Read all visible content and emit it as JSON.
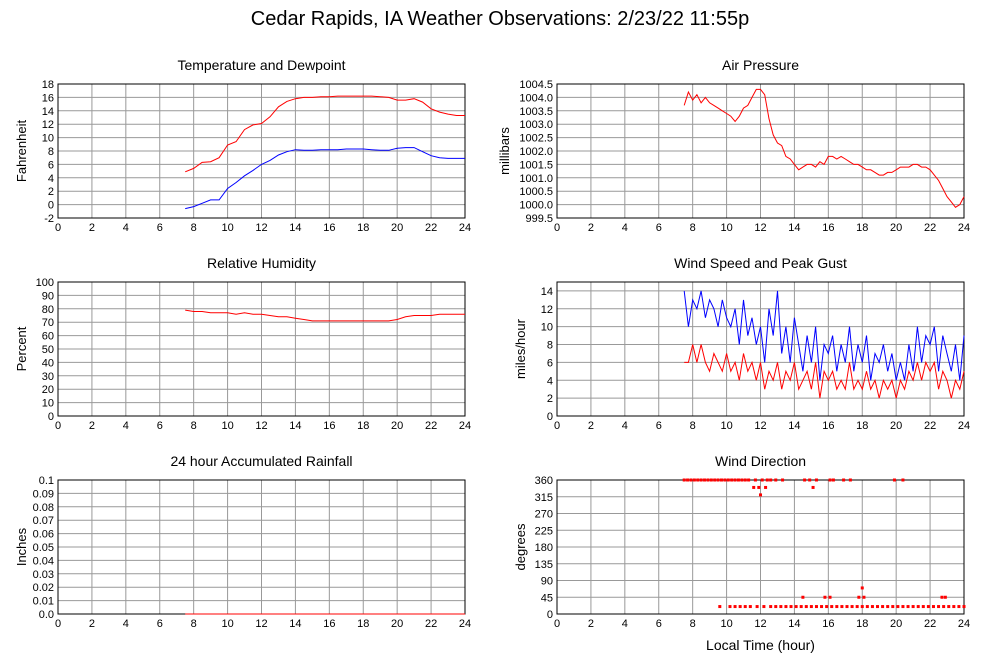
{
  "title": "Cedar Rapids, IA Weather Observations: 2/23/22 11:55p",
  "xlabel": "Local Time (hour)",
  "colors": {
    "red": "#ff0000",
    "blue": "#0000ff",
    "grid": "#999999"
  },
  "chart_data": [
    {
      "id": "temp",
      "type": "line",
      "title": "Temperature and Dewpoint",
      "ylabel": "Fahrenheit",
      "xlim": [
        0,
        24
      ],
      "ylim": [
        -2,
        18
      ],
      "yticks": [
        "-2",
        "0",
        "2",
        "4",
        "6",
        "8",
        "10",
        "12",
        "14",
        "16",
        "18"
      ],
      "xticks": [
        "0",
        "2",
        "4",
        "6",
        "8",
        "10",
        "12",
        "14",
        "16",
        "18",
        "20",
        "22",
        "24"
      ],
      "grid": true,
      "series": [
        {
          "color": "#ff0000",
          "x": [
            7.5,
            8,
            8.5,
            9,
            9.5,
            10,
            10.5,
            11,
            11.5,
            12,
            12.5,
            13,
            13.5,
            14,
            14.5,
            15,
            15.5,
            16,
            16.5,
            17,
            17.5,
            18,
            18.5,
            19,
            19.5,
            20,
            20.5,
            21,
            21.5,
            22,
            22.5,
            23,
            23.5,
            24
          ],
          "y": [
            4.9,
            5.4,
            6.3,
            6.4,
            7.0,
            8.9,
            9.4,
            11.2,
            11.9,
            12.1,
            13.1,
            14.6,
            15.4,
            15.8,
            16.0,
            16.0,
            16.1,
            16.1,
            16.2,
            16.2,
            16.2,
            16.2,
            16.2,
            16.1,
            16.0,
            15.6,
            15.6,
            15.8,
            15.3,
            14.3,
            13.8,
            13.5,
            13.3,
            13.3
          ]
        },
        {
          "color": "#0000ff",
          "x": [
            7.5,
            8,
            8.5,
            9,
            9.5,
            10,
            10.5,
            11,
            11.5,
            12,
            12.5,
            13,
            13.5,
            14,
            14.5,
            15,
            15.5,
            16,
            16.5,
            17,
            17.5,
            18,
            18.5,
            19,
            19.5,
            20,
            20.5,
            21,
            21.5,
            22,
            22.5,
            23,
            23.5,
            24
          ],
          "y": [
            -0.6,
            -0.3,
            0.2,
            0.7,
            0.7,
            2.4,
            3.3,
            4.3,
            5.1,
            6.0,
            6.6,
            7.4,
            7.9,
            8.2,
            8.1,
            8.1,
            8.2,
            8.2,
            8.2,
            8.3,
            8.3,
            8.3,
            8.2,
            8.1,
            8.1,
            8.4,
            8.5,
            8.5,
            7.9,
            7.3,
            7.0,
            6.9,
            6.9,
            6.9
          ]
        }
      ]
    },
    {
      "id": "pres",
      "type": "line",
      "title": "Air Pressure",
      "ylabel": "millibars",
      "xlim": [
        0,
        24
      ],
      "ylim": [
        999.5,
        1004.5
      ],
      "yticks": [
        "999.5",
        "1000.0",
        "1000.5",
        "1001.0",
        "1001.5",
        "1002.0",
        "1002.5",
        "1003.0",
        "1003.5",
        "1004.0",
        "1004.5"
      ],
      "xticks": [
        "0",
        "2",
        "4",
        "6",
        "8",
        "10",
        "12",
        "14",
        "16",
        "18",
        "20",
        "22",
        "24"
      ],
      "grid": true,
      "series": [
        {
          "color": "#ff0000",
          "x": [
            7.5,
            7.75,
            8,
            8.25,
            8.5,
            8.75,
            9,
            9.25,
            9.5,
            9.75,
            10,
            10.25,
            10.5,
            10.75,
            11,
            11.25,
            11.5,
            11.75,
            12,
            12.25,
            12.5,
            12.75,
            13,
            13.25,
            13.5,
            13.75,
            14,
            14.25,
            14.5,
            14.75,
            15,
            15.25,
            15.5,
            15.75,
            16,
            16.25,
            16.5,
            16.75,
            17,
            17.25,
            17.5,
            17.75,
            18,
            18.25,
            18.5,
            18.75,
            19,
            19.25,
            19.5,
            19.75,
            20,
            20.25,
            20.5,
            20.75,
            21,
            21.25,
            21.5,
            21.75,
            22,
            22.25,
            22.5,
            22.75,
            23,
            23.25,
            23.5,
            23.75,
            24
          ],
          "y": [
            1003.7,
            1004.2,
            1003.9,
            1004.1,
            1003.8,
            1004.0,
            1003.8,
            1003.7,
            1003.6,
            1003.5,
            1003.4,
            1003.3,
            1003.1,
            1003.3,
            1003.6,
            1003.7,
            1004.0,
            1004.3,
            1004.3,
            1004.1,
            1003.2,
            1002.6,
            1002.3,
            1002.2,
            1001.8,
            1001.7,
            1001.5,
            1001.3,
            1001.4,
            1001.5,
            1001.5,
            1001.4,
            1001.6,
            1001.5,
            1001.8,
            1001.8,
            1001.7,
            1001.8,
            1001.7,
            1001.6,
            1001.5,
            1001.5,
            1001.4,
            1001.3,
            1001.3,
            1001.2,
            1001.1,
            1001.1,
            1001.2,
            1001.2,
            1001.3,
            1001.4,
            1001.4,
            1001.4,
            1001.5,
            1001.5,
            1001.4,
            1001.4,
            1001.3,
            1001.1,
            1000.9,
            1000.6,
            1000.3,
            1000.1,
            999.9,
            1000.0,
            1000.3
          ]
        }
      ]
    },
    {
      "id": "rh",
      "type": "line",
      "title": "Relative Humidity",
      "ylabel": "Percent",
      "xlim": [
        0,
        24
      ],
      "ylim": [
        0,
        100
      ],
      "yticks": [
        "0",
        "10",
        "20",
        "30",
        "40",
        "50",
        "60",
        "70",
        "80",
        "90",
        "100"
      ],
      "xticks": [
        "0",
        "2",
        "4",
        "6",
        "8",
        "10",
        "12",
        "14",
        "16",
        "18",
        "20",
        "22",
        "24"
      ],
      "grid": true,
      "series": [
        {
          "color": "#ff0000",
          "x": [
            7.5,
            8,
            8.5,
            9,
            9.5,
            10,
            10.5,
            11,
            11.5,
            12,
            12.5,
            13,
            13.5,
            14,
            14.5,
            15,
            15.5,
            16,
            16.5,
            17,
            17.5,
            18,
            18.5,
            19,
            19.5,
            20,
            20.5,
            21,
            21.5,
            22,
            22.5,
            23,
            23.5,
            24
          ],
          "y": [
            79,
            78,
            78,
            77,
            77,
            77,
            76,
            77,
            76,
            76,
            75,
            74,
            74,
            73,
            72,
            71,
            71,
            71,
            71,
            71,
            71,
            71,
            71,
            71,
            71,
            72,
            74,
            75,
            75,
            75,
            76,
            76,
            76,
            76
          ]
        }
      ]
    },
    {
      "id": "wind",
      "type": "line",
      "title": "Wind Speed and Peak Gust",
      "ylabel": "miles/hour",
      "xlim": [
        0,
        24
      ],
      "ylim": [
        0,
        15
      ],
      "yticks": [
        "0",
        "2",
        "4",
        "6",
        "8",
        "10",
        "12",
        "14"
      ],
      "xticks": [
        "0",
        "2",
        "4",
        "6",
        "8",
        "10",
        "12",
        "14",
        "16",
        "18",
        "20",
        "22",
        "24"
      ],
      "grid": true,
      "series": [
        {
          "color": "#0000ff",
          "x": [
            7.5,
            7.75,
            8,
            8.25,
            8.5,
            8.75,
            9,
            9.25,
            9.5,
            9.75,
            10,
            10.25,
            10.5,
            10.75,
            11,
            11.25,
            11.5,
            11.75,
            12,
            12.25,
            12.5,
            12.75,
            13,
            13.25,
            13.5,
            13.75,
            14,
            14.25,
            14.5,
            14.75,
            15,
            15.25,
            15.5,
            15.75,
            16,
            16.25,
            16.5,
            16.75,
            17,
            17.25,
            17.5,
            17.75,
            18,
            18.25,
            18.5,
            18.75,
            19,
            19.25,
            19.5,
            19.75,
            20,
            20.25,
            20.5,
            20.75,
            21,
            21.25,
            21.5,
            21.75,
            22,
            22.25,
            22.5,
            22.75,
            23,
            23.25,
            23.5,
            23.75,
            24
          ],
          "y": [
            14,
            10,
            13,
            12,
            14,
            11,
            13,
            12,
            10,
            13,
            11,
            10,
            12,
            8,
            13,
            9,
            11,
            8,
            10,
            6,
            12,
            9,
            14,
            7,
            10,
            6,
            11,
            8,
            5,
            9,
            6,
            10,
            4,
            8,
            7,
            9,
            5,
            8,
            6,
            10,
            5,
            8,
            6,
            9,
            4,
            7,
            6,
            8,
            5,
            7,
            4,
            6,
            4,
            8,
            5,
            10,
            6,
            9,
            8,
            10,
            5,
            9,
            7,
            5,
            8,
            4,
            9
          ]
        },
        {
          "color": "#ff0000",
          "x": [
            7.5,
            7.75,
            8,
            8.25,
            8.5,
            8.75,
            9,
            9.25,
            9.5,
            9.75,
            10,
            10.25,
            10.5,
            10.75,
            11,
            11.25,
            11.5,
            11.75,
            12,
            12.25,
            12.5,
            12.75,
            13,
            13.25,
            13.5,
            13.75,
            14,
            14.25,
            14.5,
            14.75,
            15,
            15.25,
            15.5,
            15.75,
            16,
            16.25,
            16.5,
            16.75,
            17,
            17.25,
            17.5,
            17.75,
            18,
            18.25,
            18.5,
            18.75,
            19,
            19.25,
            19.5,
            19.75,
            20,
            20.25,
            20.5,
            20.75,
            21,
            21.25,
            21.5,
            21.75,
            22,
            22.25,
            22.5,
            22.75,
            23,
            23.25,
            23.5,
            23.75,
            24
          ],
          "y": [
            6,
            6,
            8,
            6,
            8,
            6,
            5,
            7,
            6,
            5,
            7,
            5,
            6,
            4,
            7,
            5,
            6,
            4,
            6,
            3,
            5,
            4,
            6,
            3,
            5,
            4,
            6,
            3,
            4,
            5,
            3,
            6,
            2,
            5,
            4,
            5,
            3,
            4,
            3,
            6,
            3,
            4,
            3,
            5,
            3,
            4,
            2,
            4,
            3,
            4,
            2,
            4,
            3,
            5,
            4,
            6,
            4,
            6,
            5,
            6,
            3,
            5,
            4,
            2,
            4,
            3,
            5
          ]
        }
      ]
    },
    {
      "id": "rain",
      "type": "line",
      "title": "24 hour Accumulated Rainfall",
      "ylabel": "Inches",
      "xlim": [
        0,
        24
      ],
      "ylim": [
        0,
        0.1
      ],
      "yticks": [
        "0.0",
        "0.01",
        "0.02",
        "0.03",
        "0.04",
        "0.05",
        "0.06",
        "0.07",
        "0.08",
        "0.09",
        "0.1"
      ],
      "xticks": [
        "0",
        "2",
        "4",
        "6",
        "8",
        "10",
        "12",
        "14",
        "16",
        "18",
        "20",
        "22",
        "24"
      ],
      "grid": true,
      "series": [
        {
          "color": "#ff0000",
          "x": [
            7.5,
            24
          ],
          "y": [
            0,
            0
          ]
        }
      ]
    },
    {
      "id": "dir",
      "type": "scatter",
      "title": "Wind Direction",
      "ylabel": "degrees",
      "xlim": [
        0,
        24
      ],
      "ylim": [
        0,
        360
      ],
      "yticks": [
        "0",
        "45",
        "90",
        "135",
        "180",
        "225",
        "270",
        "315",
        "360"
      ],
      "xticks": [
        "0",
        "2",
        "4",
        "6",
        "8",
        "10",
        "12",
        "14",
        "16",
        "18",
        "20",
        "22",
        "24"
      ],
      "grid": true,
      "series": [
        {
          "color": "#ff0000",
          "x": [
            7.5,
            7.7,
            7.9,
            8.1,
            8.3,
            8.5,
            8.7,
            8.9,
            9.1,
            9.3,
            9.5,
            9.7,
            9.9,
            10.1,
            10.3,
            10.5,
            10.7,
            10.9,
            11.1,
            11.3,
            11.7,
            12.1,
            12.4,
            12.6,
            12.9,
            13.3,
            14.6,
            14.9,
            15.3,
            16.1,
            16.3,
            16.9,
            17.3,
            19.9,
            20.4,
            11.6,
            11.9,
            12.3,
            15.1,
            12.0,
            9.6,
            10.2,
            10.5,
            10.8,
            11.1,
            11.4,
            11.8,
            12.2,
            12.6,
            12.9,
            13.2,
            13.5,
            13.8,
            14.1,
            14.4,
            14.7,
            15.0,
            15.3,
            15.6,
            15.9,
            16.2,
            16.5,
            16.8,
            17.1,
            17.4,
            17.7,
            18.0,
            18.3,
            18.6,
            18.9,
            19.2,
            19.5,
            19.8,
            20.1,
            20.4,
            20.7,
            21.0,
            21.3,
            21.6,
            21.9,
            22.2,
            22.5,
            22.8,
            23.1,
            23.4,
            23.7,
            24.0,
            14.5,
            15.8,
            16.1,
            17.8,
            18.1,
            22.7,
            22.9,
            18.0
          ],
          "y": [
            360,
            360,
            360,
            360,
            360,
            360,
            360,
            360,
            360,
            360,
            360,
            360,
            360,
            360,
            360,
            360,
            360,
            360,
            360,
            360,
            360,
            360,
            360,
            360,
            360,
            360,
            360,
            360,
            360,
            360,
            360,
            360,
            360,
            360,
            360,
            340,
            340,
            340,
            340,
            320,
            20,
            20,
            20,
            20,
            20,
            20,
            20,
            20,
            20,
            20,
            20,
            20,
            20,
            20,
            20,
            20,
            20,
            20,
            20,
            20,
            20,
            20,
            20,
            20,
            20,
            20,
            20,
            20,
            20,
            20,
            20,
            20,
            20,
            20,
            20,
            20,
            20,
            20,
            20,
            20,
            20,
            20,
            20,
            20,
            20,
            20,
            20,
            45,
            45,
            45,
            45,
            45,
            45,
            45,
            70
          ]
        }
      ]
    }
  ]
}
